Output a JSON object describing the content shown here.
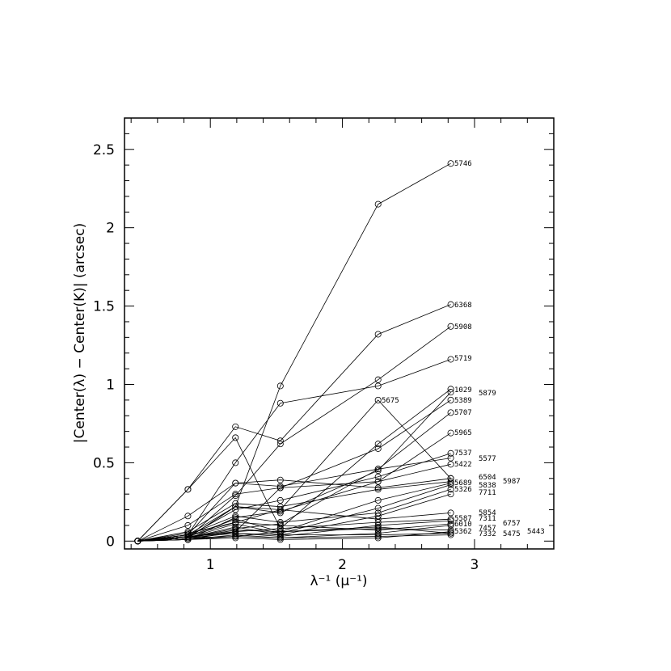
{
  "chart_data": {
    "type": "line",
    "title": "",
    "xlabel": "λ⁻¹ (μ⁻¹)",
    "ylabel": "|Center(λ) − Center(K)| (arcsec)",
    "xlim": [
      0.35,
      3.6
    ],
    "ylim": [
      -0.05,
      2.7
    ],
    "x_ticks": [
      1,
      2,
      3
    ],
    "y_ticks": [
      0,
      0.5,
      1,
      1.5,
      2,
      2.5
    ],
    "x_tick_labels": [
      "1",
      "2",
      "3"
    ],
    "y_tick_labels": [
      "0",
      "0.5",
      "1",
      "1.5",
      "2",
      "2.5"
    ],
    "x": [
      0.45,
      0.83,
      1.19,
      1.53,
      2.27,
      2.82
    ],
    "marker": "open-circle",
    "grid": false,
    "legend": "none",
    "series": [
      {
        "name": "5746",
        "values": [
          0,
          0.02,
          0.22,
          0.99,
          2.15,
          2.41
        ]
      },
      {
        "name": "6368",
        "values": [
          0,
          0.33,
          0.73,
          0.64,
          1.32,
          1.51
        ]
      },
      {
        "name": "5908",
        "values": [
          0,
          0.02,
          0.29,
          0.62,
          1.03,
          1.37
        ]
      },
      {
        "name": "5719",
        "values": [
          0,
          0.04,
          0.5,
          0.88,
          0.99,
          1.16
        ]
      },
      {
        "name": "1029",
        "values": [
          0,
          0.33,
          0.66,
          0.08,
          0.62,
          0.97
        ]
      },
      {
        "name": "5879",
        "values": [
          0,
          0.02,
          0.22,
          0.18,
          0.45,
          0.95
        ]
      },
      {
        "name": "5675",
        "values": [
          0,
          0.03,
          0.12,
          0.2,
          0.9,
          0.4
        ]
      },
      {
        "name": "5389",
        "values": [
          0,
          0.01,
          0.06,
          0.34,
          0.59,
          0.9
        ]
      },
      {
        "name": "5707",
        "values": [
          0,
          0.04,
          0.37,
          0.35,
          0.46,
          0.82
        ]
      },
      {
        "name": "5965",
        "values": [
          0,
          0.01,
          0.15,
          0.19,
          0.38,
          0.69
        ]
      },
      {
        "name": "7537",
        "values": [
          0,
          0.03,
          0.2,
          0.26,
          0.41,
          0.56
        ]
      },
      {
        "name": "5577",
        "values": [
          0,
          0.02,
          0.08,
          0.11,
          0.46,
          0.53
        ]
      },
      {
        "name": "5422",
        "values": [
          0,
          0.1,
          0.3,
          0.34,
          0.38,
          0.49
        ]
      },
      {
        "name": "6504",
        "values": [
          0,
          0.16,
          0.37,
          0.39,
          0.34,
          0.4
        ]
      },
      {
        "name": "5987",
        "values": [
          0,
          0.06,
          0.24,
          0.22,
          0.33,
          0.38
        ]
      },
      {
        "name": "5689",
        "values": [
          0,
          0.03,
          0.14,
          0.06,
          0.26,
          0.37
        ]
      },
      {
        "name": "5838",
        "values": [
          0,
          0.02,
          0.11,
          0.05,
          0.21,
          0.36
        ]
      },
      {
        "name": "5326",
        "values": [
          0,
          0.04,
          0.16,
          0.12,
          0.18,
          0.33
        ]
      },
      {
        "name": "7711",
        "values": [
          0,
          0.02,
          0.09,
          0.04,
          0.16,
          0.3
        ]
      },
      {
        "name": "5854",
        "values": [
          0,
          0.04,
          0.22,
          0.2,
          0.14,
          0.18
        ]
      },
      {
        "name": "5587",
        "values": [
          0,
          0.03,
          0.06,
          0.08,
          0.12,
          0.14
        ]
      },
      {
        "name": "7311",
        "values": [
          0,
          0.02,
          0.05,
          0.03,
          0.1,
          0.13
        ]
      },
      {
        "name": "6757",
        "values": [
          0,
          0.05,
          0.12,
          0.1,
          0.07,
          0.11
        ]
      },
      {
        "name": "6010",
        "values": [
          0,
          0.01,
          0.04,
          0.02,
          0.05,
          0.1
        ]
      },
      {
        "name": "7457",
        "values": [
          0,
          0.02,
          0.03,
          0.06,
          0.08,
          0.07
        ]
      },
      {
        "name": "5362",
        "values": [
          0,
          0.01,
          0.02,
          0.01,
          0.02,
          0.06
        ]
      },
      {
        "name": "7332",
        "values": [
          0,
          0.03,
          0.05,
          0.04,
          0.04,
          0.05
        ]
      },
      {
        "name": "5475",
        "values": [
          0,
          0.02,
          0.07,
          0.06,
          0.09,
          0.05
        ]
      },
      {
        "name": "5443",
        "values": [
          0,
          0.01,
          0.03,
          0.02,
          0.03,
          0.04
        ]
      }
    ]
  }
}
